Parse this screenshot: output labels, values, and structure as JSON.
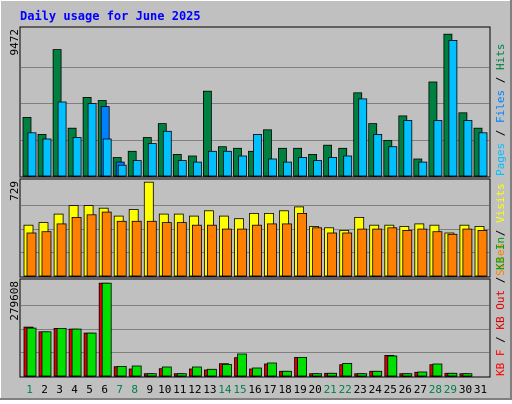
{
  "title": "Daily usage for June 2025",
  "colors": {
    "background": "#c0c0c0",
    "title": "#0000ff",
    "hits": "#008040",
    "files": "#0080ff",
    "pages": "#00c0ff",
    "visits": "#ffff00",
    "sites": "#ff8000",
    "kb_in": "#00e000",
    "kb_out": "#e00000",
    "kb_f": "#ff0000",
    "weekend_day": "#00804a"
  },
  "chart_data": [
    {
      "type": "bar",
      "panel": "hits-files-pages",
      "categories": [
        "1",
        "2",
        "3",
        "4",
        "5",
        "6",
        "7",
        "8",
        "9",
        "10",
        "11",
        "12",
        "13",
        "14",
        "15",
        "16",
        "17",
        "18",
        "19",
        "20",
        "21",
        "22",
        "23",
        "24",
        "25",
        "26",
        "27",
        "28",
        "29",
        "30",
        "31"
      ],
      "ymax_label": "9472",
      "ylim": [
        0,
        9472
      ],
      "legend": {
        "hits": "Hits",
        "files": "Files",
        "pages": "Pages",
        "sep": " / "
      },
      "series": [
        {
          "name": "Hits",
          "values": [
            3800,
            2700,
            8200,
            3100,
            5100,
            4900,
            1200,
            1600,
            2500,
            3400,
            1400,
            1300,
            5500,
            1900,
            1800,
            1600,
            3000,
            1800,
            1800,
            1400,
            2000,
            1800,
            5400,
            3400,
            2300,
            3900,
            1100,
            6100,
            9200,
            4100,
            3100
          ]
        },
        {
          "name": "Files",
          "values": [
            0,
            0,
            0,
            0,
            0,
            4500,
            900,
            0,
            0,
            0,
            0,
            0,
            0,
            0,
            0,
            0,
            0,
            0,
            0,
            0,
            0,
            0,
            0,
            0,
            0,
            0,
            0,
            0,
            0,
            0,
            0
          ]
        },
        {
          "name": "Pages",
          "values": [
            2800,
            2400,
            4800,
            2500,
            4700,
            2400,
            700,
            1000,
            2100,
            2900,
            1000,
            900,
            1600,
            1600,
            1300,
            2700,
            1100,
            900,
            1200,
            1000,
            1200,
            1300,
            5000,
            2700,
            1900,
            3600,
            900,
            3600,
            8800,
            3600,
            2800
          ]
        }
      ]
    },
    {
      "type": "bar",
      "panel": "visits-sites",
      "categories": [
        "1",
        "2",
        "3",
        "4",
        "5",
        "6",
        "7",
        "8",
        "9",
        "10",
        "11",
        "12",
        "13",
        "14",
        "15",
        "16",
        "17",
        "18",
        "19",
        "20",
        "21",
        "22",
        "23",
        "24",
        "25",
        "26",
        "27",
        "28",
        "29",
        "30",
        "31"
      ],
      "ymax_label": "729",
      "ylim": [
        0,
        729
      ],
      "legend": {
        "visits": "Visits",
        "sites": "Sites",
        "sep": " / "
      },
      "series": [
        {
          "name": "Visits",
          "values": [
            390,
            410,
            475,
            540,
            540,
            520,
            460,
            510,
            720,
            475,
            475,
            460,
            500,
            460,
            440,
            480,
            480,
            500,
            530,
            380,
            370,
            350,
            450,
            390,
            390,
            380,
            400,
            390,
            330,
            390,
            380
          ]
        },
        {
          "name": "Sites",
          "values": [
            330,
            340,
            400,
            450,
            470,
            490,
            420,
            420,
            420,
            410,
            410,
            390,
            390,
            360,
            360,
            390,
            400,
            400,
            480,
            370,
            330,
            330,
            360,
            360,
            370,
            350,
            360,
            340,
            320,
            360,
            350
          ]
        }
      ]
    },
    {
      "type": "bar",
      "panel": "kb",
      "categories": [
        "1",
        "2",
        "3",
        "4",
        "5",
        "6",
        "7",
        "8",
        "9",
        "10",
        "11",
        "12",
        "13",
        "14",
        "15",
        "16",
        "17",
        "18",
        "19",
        "20",
        "21",
        "22",
        "23",
        "24",
        "25",
        "26",
        "27",
        "28",
        "29",
        "30",
        "31"
      ],
      "ymax_label": "279608",
      "ylim": [
        0,
        279608
      ],
      "legend": {
        "kb_f": "KB F",
        "kb_out": "KB Out",
        "kb_in": "KB In",
        "sep": " / "
      },
      "series": [
        {
          "name": "KB Out",
          "values": [
            147000,
            133000,
            143000,
            141000,
            129000,
            279000,
            28000,
            21000,
            7000,
            22000,
            7000,
            21000,
            18000,
            37000,
            55000,
            21000,
            36000,
            14000,
            56000,
            7000,
            8000,
            34000,
            7000,
            14000,
            62000,
            7000,
            11000,
            34000,
            8000,
            7000,
            0
          ]
        },
        {
          "name": "KB In",
          "values": [
            144000,
            133000,
            143000,
            141000,
            129000,
            279000,
            29000,
            30000,
            7000,
            27000,
            7000,
            27000,
            20000,
            35000,
            66000,
            24000,
            39000,
            14000,
            56000,
            7000,
            8000,
            38000,
            7000,
            14000,
            60000,
            7000,
            12000,
            36000,
            8000,
            7000,
            0
          ]
        }
      ]
    }
  ],
  "weekend_days": [
    "1",
    "7",
    "8",
    "14",
    "15",
    "21",
    "22",
    "28",
    "29"
  ]
}
